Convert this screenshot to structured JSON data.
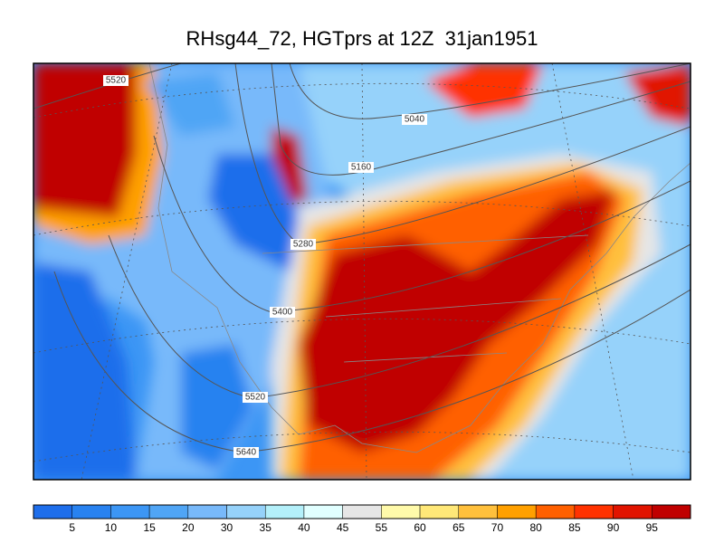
{
  "title": "RHsg44_72, HGTprs at 12Z  31jan1951",
  "contours": {
    "labels": [
      "5520",
      "5040",
      "5160",
      "5280",
      "5400",
      "5520",
      "5640"
    ]
  },
  "colorbar": {
    "colors": [
      "#1e6eeb",
      "#2882f0",
      "#3c96f5",
      "#50a5f5",
      "#78b9fa",
      "#96d2fa",
      "#b4f0fa",
      "#e1ffff",
      "#e6e6e6",
      "#fffaaa",
      "#ffe878",
      "#ffc03c",
      "#ffa000",
      "#ff6000",
      "#ff3200",
      "#e11400",
      "#c00000"
    ],
    "ticks": [
      5,
      10,
      15,
      20,
      30,
      35,
      40,
      45,
      55,
      60,
      65,
      70,
      80,
      85,
      90,
      95
    ]
  }
}
